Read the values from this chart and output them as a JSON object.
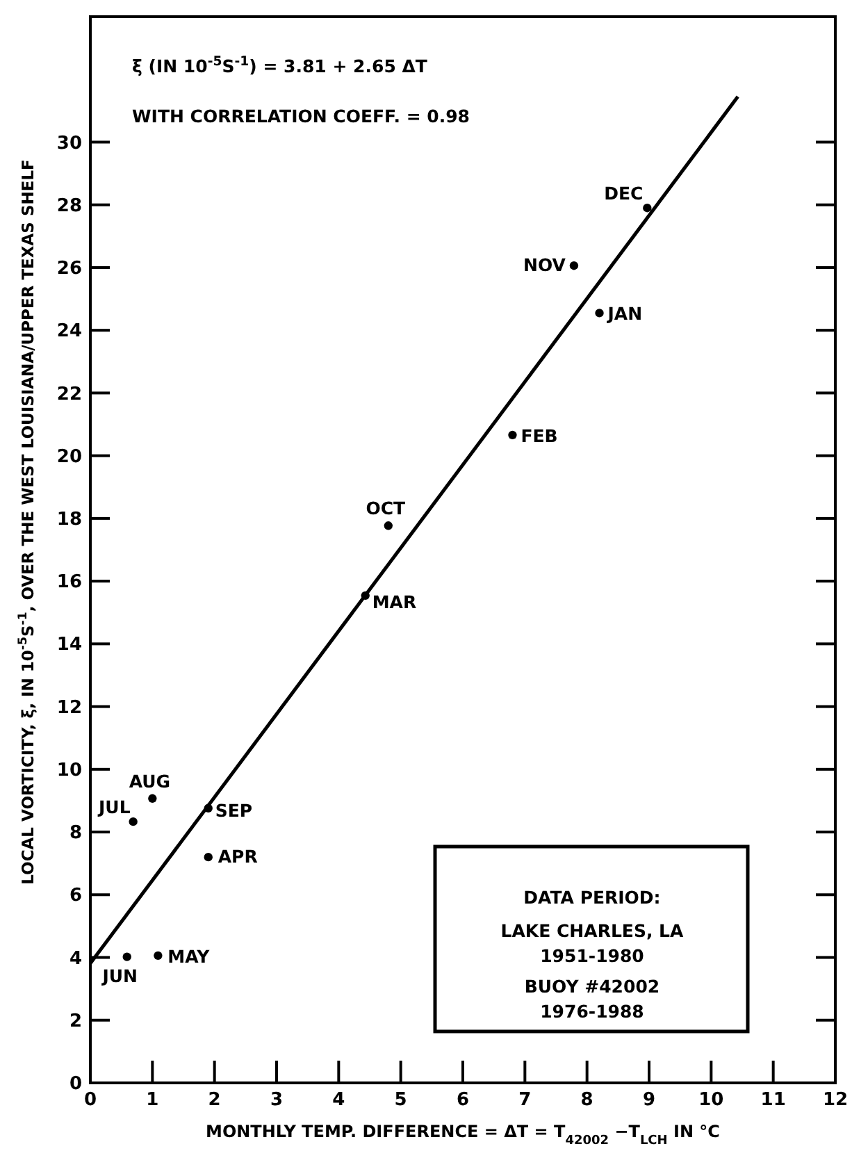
{
  "chart_data": {
    "type": "scatter",
    "xlabel": "MONTHLY TEMP. DIFFERENCE = ΔT = T$_{42002}$ −T$_{LCH}$ IN °C",
    "ylabel": "LOCAL VORTICITY, ξ, IN 10$^{-5}$S$^{-1}$, OVER THE WEST LOUISIANA/UPPER TEXAS SHELF",
    "xlim": [
      0,
      12
    ],
    "xticks": [
      0,
      1,
      2,
      3,
      4,
      5,
      6,
      7,
      8,
      9,
      10,
      11,
      12
    ],
    "ylim": [
      0,
      34
    ],
    "yticks": [
      0,
      2,
      4,
      6,
      8,
      10,
      12,
      14,
      16,
      18,
      20,
      22,
      24,
      26,
      28,
      30
    ],
    "grid": false,
    "series": [
      {
        "color": "#000000",
        "marker": "circle",
        "x": [
          8.97,
          7.79,
          8.2,
          6.8,
          4.8,
          4.43,
          1.9,
          1.0,
          0.69,
          1.9,
          0.59,
          1.09
        ],
        "values": [
          27.9,
          26.06,
          24.55,
          20.66,
          17.77,
          15.54,
          8.76,
          9.07,
          8.33,
          7.2,
          4.02,
          4.06
        ]
      },
      {
        "type": "line",
        "color": "#000000",
        "line_style": "solid",
        "x": [
          0,
          10.43
        ],
        "values": [
          3.81,
          31.45
        ]
      }
    ],
    "annotations": [
      "ξ  (IN 10$^{-5}$S$^{-1}$) = 3.81 + 2.65 ΔT",
      "WITH CORRELATION COEFF. = 0.98",
      "DATA PERIOD:",
      "LAKE CHARLES, LA",
      "1951-1980",
      "BUOY #42002",
      "1976-1988",
      {
        "text": "DEC",
        "x": 8.97,
        "y": 27.9
      },
      {
        "text": "NOV",
        "x": 7.79,
        "y": 26.06
      },
      {
        "text": "JAN",
        "x": 8.2,
        "y": 24.55
      },
      {
        "text": "FEB",
        "x": 6.8,
        "y": 20.66
      },
      {
        "text": "OCT",
        "x": 4.8,
        "y": 17.77
      },
      {
        "text": "MAR",
        "x": 4.43,
        "y": 15.54
      },
      {
        "text": "SEP",
        "x": 1.9,
        "y": 8.76
      },
      {
        "text": "AUG",
        "x": 1.0,
        "y": 9.07
      },
      {
        "text": "JUL",
        "x": 0.69,
        "y": 8.33
      },
      {
        "text": "APR",
        "x": 1.9,
        "y": 7.2
      },
      {
        "text": "JUN",
        "x": 0.59,
        "y": 4.02
      },
      {
        "text": "MAY",
        "x": 1.09,
        "y": 4.06
      }
    ]
  }
}
